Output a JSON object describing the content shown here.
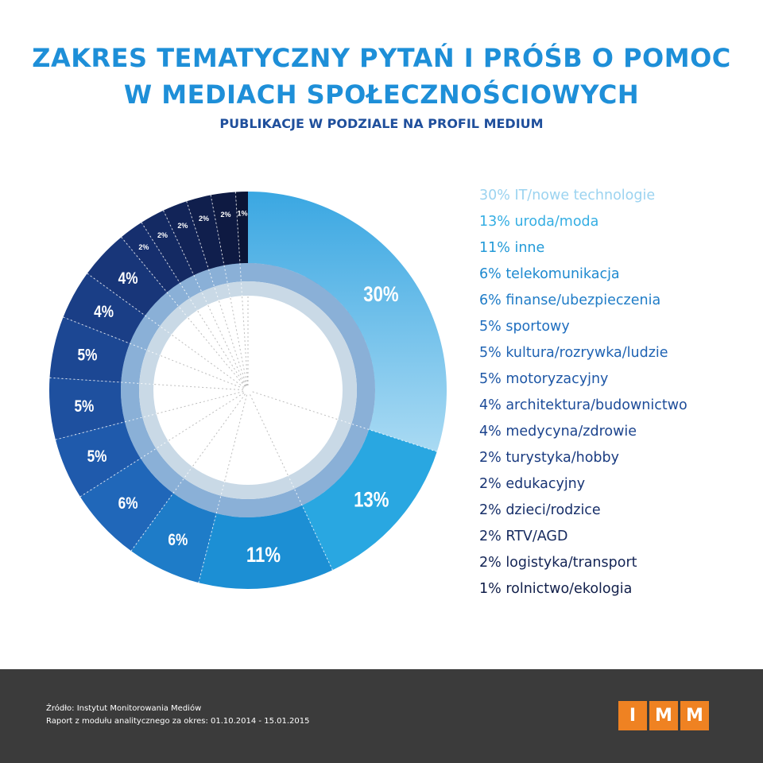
{
  "header": {
    "title_line1": "ZAKRES TEMATYCZNY PYTAŃ I PRÓŚB O POMOC",
    "title_line2": "W MEDIACH SPOŁECZNOŚCIOWYCH",
    "subtitle": "PUBLIKACJE W PODZIALE NA PROFIL MEDIUM"
  },
  "chart_data": {
    "type": "pie",
    "variant": "donut",
    "title": "ZAKRES TEMATYCZNY PYTAŃ I PRÓŚB O POMOC W MEDIACH SPOŁECZNOŚCIOWYCH",
    "subtitle": "PUBLIKACJE W PODZIALE NA PROFIL MEDIUM",
    "legend_position": "right",
    "slices": [
      {
        "label": "IT/nowe technologie",
        "value": 30,
        "value_label": "30%",
        "legend": "30% IT/nowe technologie",
        "color": "#8ccbef",
        "legend_color": "#9bd3f0"
      },
      {
        "label": "uroda/moda",
        "value": 13,
        "value_label": "13%",
        "legend": "13% uroda/moda",
        "color": "#29a7e1",
        "legend_color": "#35aee3"
      },
      {
        "label": "inne",
        "value": 11,
        "value_label": "11%",
        "legend": "11% inne",
        "color": "#1c8fd4",
        "legend_color": "#239ad8"
      },
      {
        "label": "telekomunikacja",
        "value": 6,
        "value_label": "6%",
        "legend": "6% telekomunikacja",
        "color": "#1e7cc8",
        "legend_color": "#1f8ad0"
      },
      {
        "label": "finanse/ubezpieczenia",
        "value": 6,
        "value_label": "6%",
        "legend": "6% finanse/ubezpieczenia",
        "color": "#2067b9",
        "legend_color": "#1f7cc7"
      },
      {
        "label": "sportowy",
        "value": 5,
        "value_label": "5%",
        "legend": "5% sportowy",
        "color": "#1f5aac",
        "legend_color": "#1f6ebf"
      },
      {
        "label": "kultura/rozrywka/ludzie",
        "value": 5,
        "value_label": "5%",
        "legend": "5% kultura/rozrywka/ludzie",
        "color": "#1e509f",
        "legend_color": "#1f63b3"
      },
      {
        "label": "motoryzacyjny",
        "value": 5,
        "value_label": "5%",
        "legend": "5% motoryzacyjny",
        "color": "#1c4793",
        "legend_color": "#1e57a6"
      },
      {
        "label": "architektura/budownictwo",
        "value": 4,
        "value_label": "4%",
        "legend": "4% architektura/budownictwo",
        "color": "#1a3e86",
        "legend_color": "#1d4c99"
      },
      {
        "label": "medycyna/zdrowie",
        "value": 4,
        "value_label": "4%",
        "legend": "4% medycyna/zdrowie",
        "color": "#183679",
        "legend_color": "#1b438d"
      },
      {
        "label": "turystyka/hobby",
        "value": 2,
        "value_label": "2%",
        "legend": "2% turystyka/hobby",
        "color": "#162f6e",
        "legend_color": "#1a3b80"
      },
      {
        "label": "edukacyjny",
        "value": 2,
        "value_label": "2%",
        "legend": "2% edukacyjny",
        "color": "#142a63",
        "legend_color": "#193574"
      },
      {
        "label": "dzieci/rodzice",
        "value": 2,
        "value_label": "2%",
        "legend": "2% dzieci/rodzice",
        "color": "#122458",
        "legend_color": "#172f69"
      },
      {
        "label": "RTV/AGD",
        "value": 2,
        "value_label": "2%",
        "legend": "2% RTV/AGD",
        "color": "#101f4d",
        "legend_color": "#152a5f"
      },
      {
        "label": "logistyka/transport",
        "value": 2,
        "value_label": "2%",
        "legend": "2% logistyka/transport",
        "color": "#0e1a42",
        "legend_color": "#132455"
      },
      {
        "label": "rolnictwo/ekologia",
        "value": 1,
        "value_label": "1%",
        "legend": "1% rolnictwo/ekologia",
        "color": "#0b1536",
        "legend_color": "#111f4a"
      }
    ]
  },
  "footer": {
    "source": "Źródło: Instytut Monitorowania Mediów",
    "report": "Raport z modułu analitycznego za okres: 01.10.2014 - 15.01.2015",
    "logo_letters": [
      "I",
      "M",
      "M"
    ],
    "logo_color": "#ef8222"
  }
}
